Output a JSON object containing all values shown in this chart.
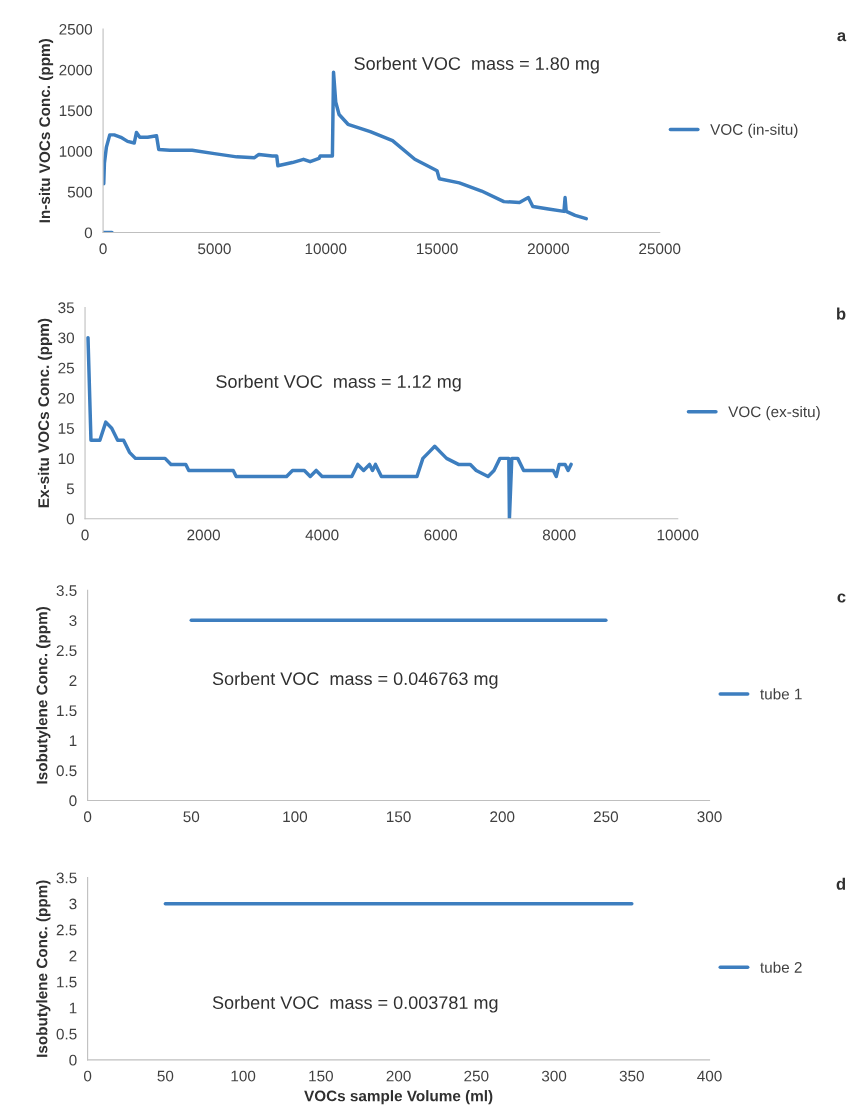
{
  "chart_data": [
    {
      "type": "line",
      "ylabel": "In-situ VOCs Conc. (ppm)",
      "xlim": [
        0,
        25000
      ],
      "xticks": [
        0,
        5000,
        10000,
        15000,
        20000,
        25000
      ],
      "ylim": [
        0,
        2500
      ],
      "yticks": [
        0,
        500,
        1000,
        1500,
        2000,
        2500
      ],
      "legend": "right",
      "grid": false,
      "annotations": [
        "a",
        "Sorbent VOC  mass = 1.80 mg"
      ],
      "series": [
        {
          "color": "#3d7ebf",
          "x": [
            0,
            400
          ],
          "values": [
            0,
            0
          ]
        },
        {
          "name": "VOC (in-situ)",
          "color": "#3d7ebf",
          "x": [
            30,
            60,
            150,
            300,
            500,
            800,
            1100,
            1400,
            1500,
            1650,
            2000,
            2400,
            2500,
            3000,
            4000,
            5000,
            6000,
            6800,
            7000,
            7600,
            7800,
            7850,
            8500,
            9000,
            9300,
            9700,
            9750,
            10300,
            10350,
            10450,
            10600,
            11000,
            12000,
            13000,
            14000,
            15000,
            15100,
            16000,
            17000,
            18000,
            18700,
            19100,
            19300,
            20000,
            20700,
            20750,
            20800,
            21200,
            21700
          ],
          "values": [
            600,
            850,
            1050,
            1200,
            1200,
            1170,
            1120,
            1100,
            1230,
            1170,
            1170,
            1190,
            1020,
            1010,
            1010,
            970,
            930,
            920,
            960,
            940,
            940,
            820,
            860,
            900,
            870,
            910,
            940,
            940,
            1970,
            1600,
            1450,
            1330,
            1240,
            1130,
            900,
            760,
            660,
            610,
            510,
            380,
            370,
            430,
            320,
            290,
            260,
            430,
            260,
            210,
            170
          ]
        }
      ]
    },
    {
      "type": "line",
      "ylabel": "Ex-situ VOCs Conc. (ppm)",
      "xlim": [
        0,
        10000
      ],
      "xticks": [
        0,
        2000,
        4000,
        6000,
        8000,
        10000
      ],
      "ylim": [
        0,
        35
      ],
      "yticks": [
        0,
        5,
        10,
        15,
        20,
        25,
        30,
        35
      ],
      "legend": "right",
      "grid": false,
      "annotations": [
        "b",
        "Sorbent VOC  mass = 1.12 mg"
      ],
      "series": [
        {
          "name": "VOC (ex-situ)",
          "color": "#3d7ebf",
          "x": [
            50,
            100,
            250,
            350,
            450,
            550,
            650,
            750,
            850,
            1350,
            1450,
            1700,
            1750,
            2500,
            2550,
            3400,
            3500,
            3700,
            3800,
            3900,
            4000,
            4500,
            4600,
            4700,
            4800,
            4850,
            4900,
            5000,
            5600,
            5700,
            5800,
            5900,
            6000,
            6100,
            6300,
            6500,
            6600,
            6800,
            6900,
            7000,
            7150,
            7160,
            7200,
            7300,
            7400,
            7900,
            7950,
            8000,
            8100,
            8150,
            8200
          ],
          "values": [
            30,
            13,
            13,
            16,
            15,
            13,
            13,
            11,
            10,
            10,
            9,
            9,
            8,
            8,
            7,
            7,
            8,
            8,
            7,
            8,
            7,
            7,
            9,
            8,
            9,
            8,
            9,
            7,
            7,
            10,
            11,
            12,
            11,
            10,
            9,
            9,
            8,
            7,
            8,
            10,
            10,
            0,
            10,
            10,
            8,
            8,
            7,
            9,
            9,
            8,
            9
          ]
        }
      ]
    },
    {
      "type": "line",
      "ylabel": "Isobutylene Conc. (ppm)",
      "xlim": [
        0,
        300
      ],
      "xticks": [
        0,
        50,
        100,
        150,
        200,
        250,
        300
      ],
      "ylim": [
        0,
        3.5
      ],
      "yticks": [
        0,
        0.5,
        1,
        1.5,
        2,
        2.5,
        3,
        3.5
      ],
      "legend": "right",
      "grid": false,
      "annotations": [
        "c",
        "Sorbent VOC  mass = 0.046763 mg"
      ],
      "series": [
        {
          "name": "tube 1",
          "color": "#3d7ebf",
          "x": [
            50,
            250
          ],
          "values": [
            3,
            3
          ]
        }
      ]
    },
    {
      "type": "line",
      "xlabel": "VOCs sample Volume (ml)",
      "ylabel": "Isobutylene Conc. (ppm)",
      "xlim": [
        0,
        400
      ],
      "xticks": [
        0,
        50,
        100,
        150,
        200,
        250,
        300,
        350,
        400
      ],
      "ylim": [
        0,
        3.5
      ],
      "yticks": [
        0,
        0.5,
        1,
        1.5,
        2,
        2.5,
        3,
        3.5
      ],
      "legend": "right",
      "grid": false,
      "annotations": [
        "d",
        "Sorbent VOC  mass = 0.003781 mg"
      ],
      "series": [
        {
          "name": "tube 2",
          "color": "#3d7ebf",
          "x": [
            50,
            350
          ],
          "values": [
            3,
            3
          ]
        }
      ]
    }
  ]
}
